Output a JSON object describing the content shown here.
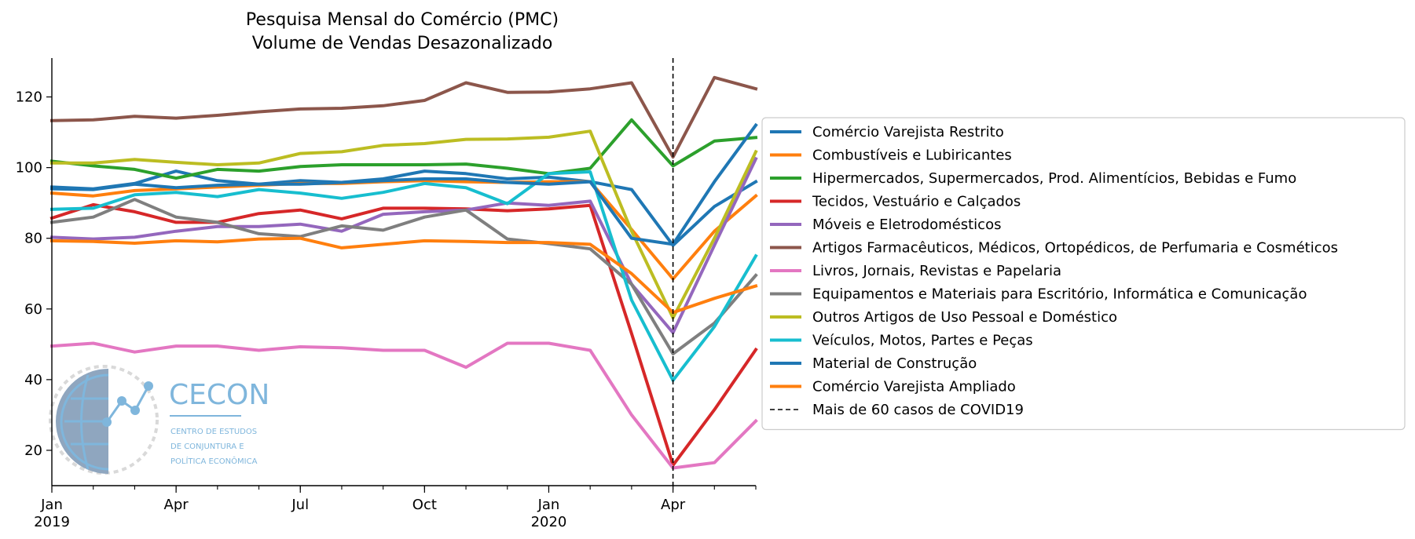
{
  "chart_data": {
    "type": "line",
    "title": "Pesquisa Mensal do Comércio (PMC)",
    "subtitle": "Volume de Vendas Desazonalizado",
    "xlabel": "",
    "ylabel": "",
    "x": [
      "2019-01",
      "2019-02",
      "2019-03",
      "2019-04",
      "2019-05",
      "2019-06",
      "2019-07",
      "2019-08",
      "2019-09",
      "2019-10",
      "2019-11",
      "2019-12",
      "2020-01",
      "2020-02",
      "2020-03",
      "2020-04",
      "2020-05",
      "2020-06"
    ],
    "x_tick_labels": [
      {
        "month": "2019-01",
        "label": "Jan",
        "year": "2019"
      },
      {
        "month": "2019-04",
        "label": "Apr",
        "year": ""
      },
      {
        "month": "2019-07",
        "label": "Jul",
        "year": ""
      },
      {
        "month": "2019-10",
        "label": "Oct",
        "year": ""
      },
      {
        "month": "2020-01",
        "label": "Jan",
        "year": "2020"
      },
      {
        "month": "2020-04",
        "label": "Apr",
        "year": ""
      }
    ],
    "yticks": [
      "20",
      "40",
      "60",
      "80",
      "100",
      "120"
    ],
    "ylim": [
      10,
      131
    ],
    "grid": false,
    "legend_position": "right, outside plot",
    "series": [
      {
        "name": "Comércio Varejista Restrito",
        "color": "#1f77b4",
        "values": [
          94.5,
          94,
          95.5,
          99,
          96.3,
          95.3,
          96.3,
          95.8,
          96.8,
          99,
          98.3,
          96.8,
          97.3,
          96,
          93.8,
          78,
          89,
          96
        ]
      },
      {
        "name": "Combustíveis e Lubiricantes",
        "color": "#ff7f0e",
        "values": [
          92.8,
          92,
          93.5,
          94,
          94.5,
          95,
          95.5,
          95.5,
          96,
          96.3,
          96,
          95.8,
          96,
          96,
          82.5,
          68.5,
          82,
          92
        ]
      },
      {
        "name": "Hipermercados, Supermercados, Prod. Alimentícios, Bebidas e Fumo",
        "color": "#2ca02c",
        "values": [
          101.8,
          100.5,
          99.5,
          97,
          99.5,
          99,
          100.3,
          100.8,
          100.8,
          100.8,
          101,
          99.8,
          98.3,
          99.8,
          113.5,
          100.5,
          107.5,
          108.5
        ]
      },
      {
        "name": "Tecidos, Vestuário e Calçados",
        "color": "#d62728",
        "values": [
          85.7,
          89.5,
          87.5,
          84.5,
          84.5,
          87,
          88,
          85.5,
          88.5,
          88.5,
          88.3,
          87.8,
          88.3,
          89.3,
          53,
          15.8,
          31.5,
          48.5
        ]
      },
      {
        "name": "Móveis e Eletrodomésticos",
        "color": "#9467bd",
        "values": [
          80.3,
          79.8,
          80.3,
          82,
          83.3,
          83.3,
          84,
          82,
          86.8,
          87.5,
          88,
          90,
          89.3,
          90.5,
          67,
          53.3,
          78,
          102.5
        ]
      },
      {
        "name": "Artigos Farmacêuticos, Médicos, Ortopédicos, de Perfumaria e Cosméticos",
        "color": "#8c564b",
        "values": [
          113.3,
          113.5,
          114.5,
          114,
          114.8,
          115.8,
          116.6,
          116.8,
          117.5,
          119,
          124,
          121.3,
          121.4,
          122.3,
          124,
          103,
          125.5,
          122.3
        ]
      },
      {
        "name": "Livros, Jornais, Revistas e Papelaria",
        "color": "#e377c2",
        "values": [
          49.5,
          50.3,
          47.8,
          49.5,
          49.5,
          48.3,
          49.3,
          49,
          48.3,
          48.3,
          43.5,
          50.3,
          50.3,
          48.3,
          30,
          15,
          16.5,
          28.3
        ]
      },
      {
        "name": "Equipamentos e Materiais para Escritório, Informática e Comunicação",
        "color": "#7f7f7f",
        "values": [
          84.5,
          86,
          91,
          86,
          84.5,
          81.3,
          80.5,
          83.5,
          82.3,
          86,
          88,
          79.8,
          78.5,
          77,
          67,
          47.3,
          56,
          69.5
        ]
      },
      {
        "name": "Outros Artigos de Uso Pessoal e Doméstico",
        "color": "#bcbd22",
        "values": [
          101.3,
          101.3,
          102.3,
          101.5,
          100.8,
          101.3,
          104,
          104.5,
          106.3,
          106.8,
          108,
          108.1,
          108.6,
          110.3,
          82,
          57.5,
          80,
          104.5
        ]
      },
      {
        "name": "Veículos, Motos, Partes e Peças",
        "color": "#17becf",
        "values": [
          88.2,
          88.5,
          92.3,
          93,
          91.8,
          93.8,
          92.8,
          91.3,
          93,
          95.5,
          94.3,
          89.8,
          98.3,
          98.8,
          62.5,
          39.8,
          55,
          75
        ]
      },
      {
        "name": "Material de Construção",
        "color": "#1f77b4",
        "values": [
          94,
          93.8,
          95.3,
          94.3,
          95,
          95.3,
          95.3,
          95.8,
          96.3,
          96.8,
          96.8,
          95.8,
          95.3,
          96,
          80,
          78.3,
          96,
          112
        ]
      },
      {
        "name": "Comércio Varejista Ampliado",
        "color": "#ff7f0e",
        "values": [
          79.3,
          79.1,
          78.6,
          79.3,
          79,
          79.8,
          80,
          77.3,
          78.3,
          79.3,
          79.1,
          78.8,
          78.8,
          78.3,
          70,
          59,
          63,
          66.5
        ]
      }
    ],
    "vline": {
      "x": "2020-04",
      "style": "dashed",
      "color": "#000000",
      "label": "Mais de 60 casos de COVID19"
    }
  },
  "logo": {
    "name": "CECON",
    "line1": "CENTRO DE ESTUDOS",
    "line2": "DE CONJUNTURA E",
    "line3": "POLÍTICA ECONÔMICA"
  }
}
